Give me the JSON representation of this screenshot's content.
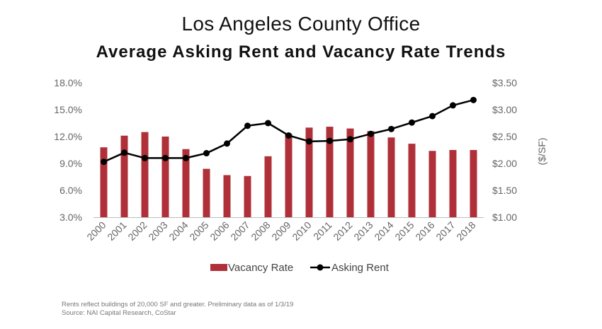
{
  "chart_data": {
    "type": "bar",
    "title": "Los Angeles County Office",
    "subtitle": "Average Asking Rent and Vacancy Rate Trends",
    "categories": [
      "2000",
      "2001",
      "2002",
      "2003",
      "2004",
      "2005",
      "2006",
      "2007",
      "2008",
      "2009",
      "2010",
      "2011",
      "2012",
      "2013",
      "2014",
      "2015",
      "2016",
      "2017",
      "2018"
    ],
    "series": [
      {
        "name": "Vacancy Rate",
        "type": "bar",
        "axis": "left",
        "color": "#b0303a",
        "values": [
          10.8,
          12.1,
          12.5,
          12.0,
          10.6,
          8.4,
          7.7,
          7.6,
          9.8,
          12.3,
          13.0,
          13.1,
          12.9,
          12.6,
          11.9,
          11.2,
          10.4,
          10.5,
          10.5
        ]
      },
      {
        "name": "Asking Rent",
        "type": "line",
        "axis": "right",
        "color": "#000000",
        "values": [
          2.03,
          2.2,
          2.1,
          2.1,
          2.1,
          2.19,
          2.37,
          2.7,
          2.75,
          2.52,
          2.41,
          2.42,
          2.45,
          2.55,
          2.64,
          2.76,
          2.88,
          3.08,
          3.18
        ]
      }
    ],
    "left_axis": {
      "ylim": [
        3.0,
        18.0
      ],
      "ticks": [
        3.0,
        6.0,
        9.0,
        12.0,
        15.0,
        18.0
      ],
      "tick_labels": [
        "3.0%",
        "6.0%",
        "9.0%",
        "12.0%",
        "15.0%",
        "18.0%"
      ]
    },
    "right_axis": {
      "ylim": [
        1.0,
        3.5
      ],
      "ticks": [
        1.0,
        1.5,
        2.0,
        2.5,
        3.0,
        3.5
      ],
      "tick_labels": [
        "$1.00",
        "$1.50",
        "$2.00",
        "$2.50",
        "$3.00",
        "$3.50"
      ],
      "label": "($/SF)"
    },
    "grid": false,
    "legend": {
      "position": "bottom-center",
      "entries": [
        "Vacancy Rate",
        "Asking Rent"
      ]
    }
  },
  "notes": {
    "line1": "Rents reflect buildings of 20,000 SF and greater. Preliminary data as of 1/3/19",
    "line2": "Source: NAI Capital Research, CoStar"
  }
}
